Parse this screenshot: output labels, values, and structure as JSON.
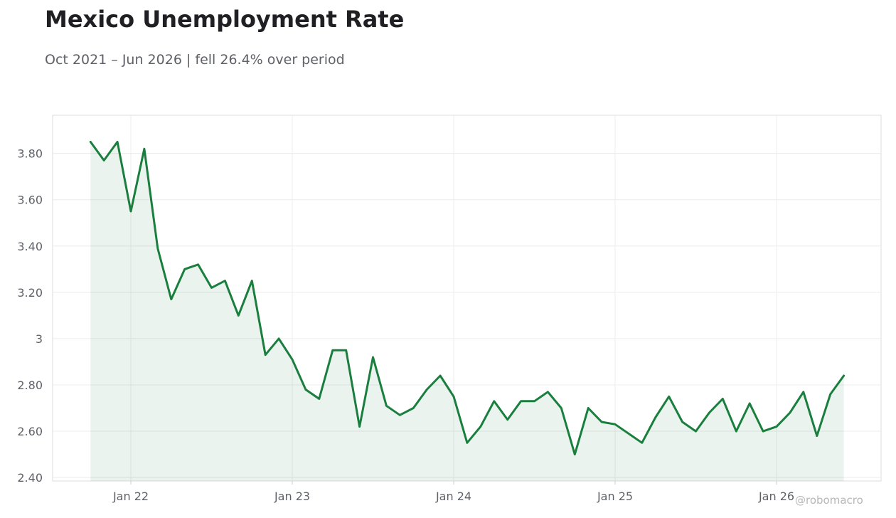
{
  "header": {
    "title": "Mexico Unemployment Rate",
    "subtitle": "Oct 2021 – Jun 2026 | fell 26.4% over period",
    "watermark": "@robomacro"
  },
  "colors": {
    "line": "#1a7f3e",
    "fill": "#1a7f3e",
    "grid": "#ececec",
    "frame": "#dddddd",
    "text": "#5f6168"
  },
  "chart_data": {
    "type": "area",
    "title": "Mexico Unemployment Rate",
    "subtitle": "Oct 2021 – Jun 2026 | fell 26.4% over period",
    "xlabel": "",
    "ylabel": "",
    "ylim": [
      2.385,
      3.965
    ],
    "y_ticks": [
      2.4,
      2.6,
      2.8,
      3.0,
      3.2,
      3.4,
      3.6,
      3.8
    ],
    "y_tick_labels": [
      "2.40",
      "2.60",
      "2.80",
      "3",
      "3.20",
      "3.40",
      "3.60",
      "3.80"
    ],
    "x_ticks": [
      "2022-01",
      "2023-01",
      "2024-01",
      "2025-01",
      "2026-01"
    ],
    "x_tick_labels": [
      "Jan 22",
      "Jan 23",
      "Jan 24",
      "Jan 25",
      "Jan 26"
    ],
    "grid": true,
    "series": [
      {
        "x": [
          "2021-10",
          "2021-11",
          "2021-12",
          "2022-01",
          "2022-02",
          "2022-03",
          "2022-04",
          "2022-05",
          "2022-06",
          "2022-07",
          "2022-08",
          "2022-09",
          "2022-10",
          "2022-11",
          "2022-12",
          "2023-01",
          "2023-02",
          "2023-03",
          "2023-04",
          "2023-05",
          "2023-06",
          "2023-07",
          "2023-08",
          "2023-09",
          "2023-10",
          "2023-11",
          "2023-12",
          "2024-01",
          "2024-02",
          "2024-03",
          "2024-04",
          "2024-05",
          "2024-06",
          "2024-07",
          "2024-08",
          "2024-09",
          "2024-10",
          "2024-11",
          "2024-12",
          "2025-01",
          "2025-02",
          "2025-03",
          "2025-04",
          "2025-05",
          "2025-06",
          "2025-07",
          "2025-08",
          "2025-09",
          "2025-10",
          "2025-11",
          "2025-12",
          "2026-01",
          "2026-02",
          "2026-03",
          "2026-04",
          "2026-05",
          "2026-06"
        ],
        "values": [
          3.85,
          3.77,
          3.85,
          3.55,
          3.82,
          3.39,
          3.17,
          3.3,
          3.32,
          3.22,
          3.25,
          3.1,
          3.25,
          2.93,
          3.0,
          2.91,
          2.78,
          2.74,
          2.95,
          2.95,
          2.62,
          2.92,
          2.71,
          2.67,
          2.7,
          2.78,
          2.84,
          2.75,
          2.55,
          2.62,
          2.73,
          2.65,
          2.73,
          2.73,
          2.77,
          2.7,
          2.5,
          2.7,
          2.64,
          2.63,
          2.59,
          2.55,
          2.66,
          2.75,
          2.64,
          2.6,
          2.68,
          2.74,
          2.6,
          2.72,
          2.6,
          2.62,
          2.68,
          2.77,
          2.58,
          2.76,
          2.84
        ]
      }
    ]
  }
}
